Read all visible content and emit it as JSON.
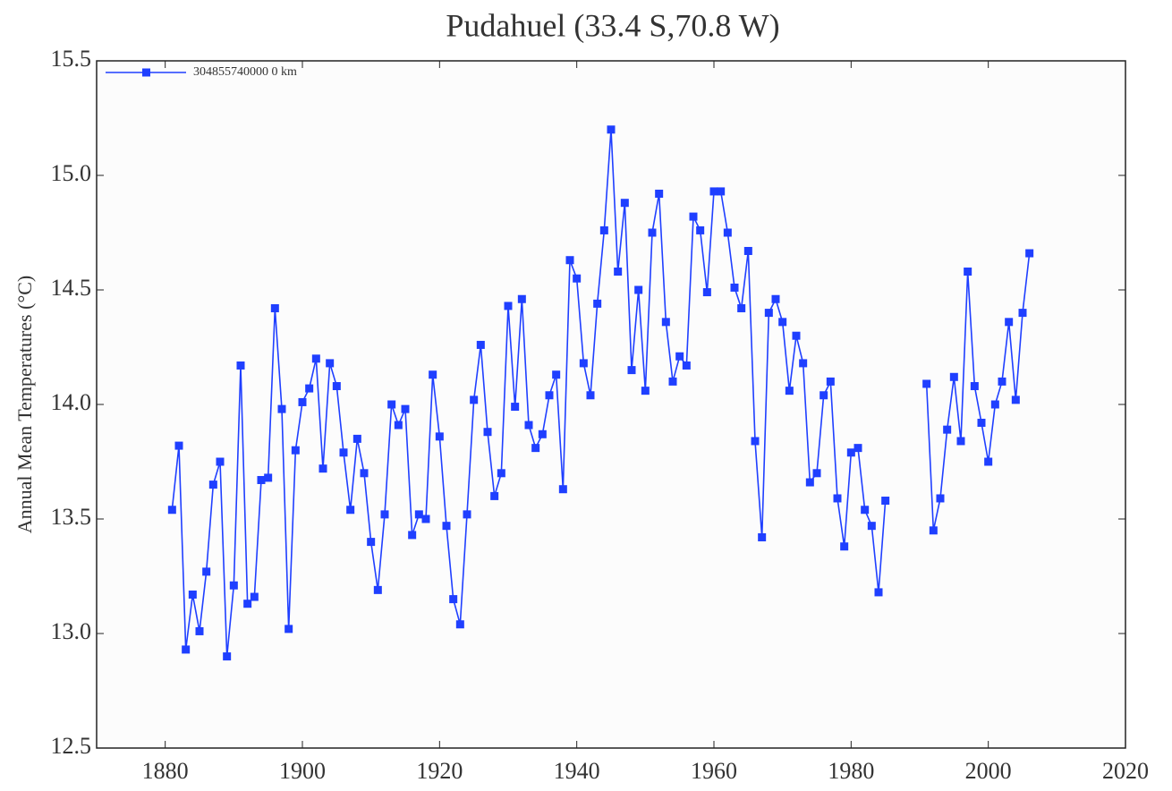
{
  "chart_data": {
    "type": "line",
    "title": "Pudahuel (33.4 S,70.8 W)",
    "y_label": "Annual Mean Temperatures (°C)",
    "x": [
      1881,
      1882,
      1883,
      1884,
      1885,
      1886,
      1887,
      1888,
      1889,
      1890,
      1891,
      1892,
      1893,
      1894,
      1895,
      1896,
      1897,
      1898,
      1899,
      1900,
      1901,
      1902,
      1903,
      1904,
      1905,
      1906,
      1907,
      1908,
      1909,
      1910,
      1911,
      1912,
      1913,
      1914,
      1915,
      1916,
      1917,
      1918,
      1919,
      1920,
      1921,
      1922,
      1923,
      1924,
      1925,
      1926,
      1927,
      1928,
      1929,
      1930,
      1931,
      1932,
      1933,
      1934,
      1935,
      1936,
      1937,
      1938,
      1939,
      1940,
      1941,
      1942,
      1943,
      1944,
      1945,
      1946,
      1947,
      1948,
      1949,
      1950,
      1951,
      1952,
      1953,
      1954,
      1955,
      1956,
      1957,
      1958,
      1959,
      1960,
      1961,
      1962,
      1963,
      1964,
      1965,
      1966,
      1967,
      1968,
      1969,
      1970,
      1971,
      1972,
      1973,
      1974,
      1975,
      1976,
      1977,
      1978,
      1979,
      1980,
      1981,
      1982,
      1983,
      1984,
      1985,
      1986,
      1987,
      1988,
      1989,
      1990,
      1991,
      1992,
      1993,
      1994,
      1995,
      1996,
      1997,
      1998,
      1999,
      2000,
      2001,
      2002,
      2003,
      2004,
      2005,
      2006
    ],
    "series": [
      {
        "name": "304855740000 0 km",
        "color": "#1f3fff",
        "values": [
          13.54,
          13.82,
          12.93,
          13.17,
          13.01,
          13.27,
          13.65,
          13.75,
          12.9,
          13.21,
          14.17,
          13.13,
          13.16,
          13.67,
          13.68,
          14.42,
          13.98,
          13.02,
          13.8,
          14.01,
          14.07,
          14.2,
          13.72,
          14.18,
          14.08,
          13.79,
          13.54,
          13.85,
          13.7,
          13.4,
          13.19,
          13.52,
          14.0,
          13.91,
          13.98,
          13.43,
          13.52,
          13.5,
          14.13,
          13.86,
          13.47,
          13.15,
          13.04,
          13.52,
          14.02,
          14.26,
          13.88,
          13.6,
          13.7,
          14.43,
          13.99,
          14.46,
          13.91,
          13.81,
          13.87,
          14.04,
          14.13,
          13.63,
          14.63,
          14.55,
          14.18,
          14.04,
          14.44,
          14.76,
          15.2,
          14.58,
          14.88,
          14.15,
          14.5,
          14.06,
          14.75,
          14.92,
          14.36,
          14.1,
          14.21,
          14.17,
          14.82,
          14.76,
          14.49,
          14.93,
          14.93,
          14.75,
          14.51,
          14.42,
          14.67,
          13.84,
          13.42,
          14.4,
          14.46,
          14.36,
          14.06,
          14.3,
          14.18,
          13.66,
          13.7,
          14.04,
          14.1,
          13.59,
          13.38,
          13.79,
          13.81,
          13.54,
          13.47,
          13.18,
          13.58,
          null,
          null,
          null,
          null,
          null,
          14.09,
          13.45,
          13.59,
          13.89,
          14.12,
          13.84,
          14.58,
          14.08,
          13.92,
          13.75,
          14.0,
          14.1,
          14.36,
          14.02,
          14.4,
          14.66
        ]
      }
    ],
    "xlim": [
      1870,
      2020
    ],
    "ylim": [
      12.5,
      15.5
    ],
    "xticks": [
      1880,
      1900,
      1920,
      1940,
      1960,
      1980,
      2000,
      2020
    ],
    "yticks": [
      12.5,
      {
        "value": 13.0,
        "label": "13.0"
      },
      13.5,
      {
        "value": 14.0,
        "label": "14.0"
      },
      14.5,
      {
        "value": 15.0,
        "label": "15.0"
      },
      15.5
    ],
    "legend": "upper left"
  }
}
